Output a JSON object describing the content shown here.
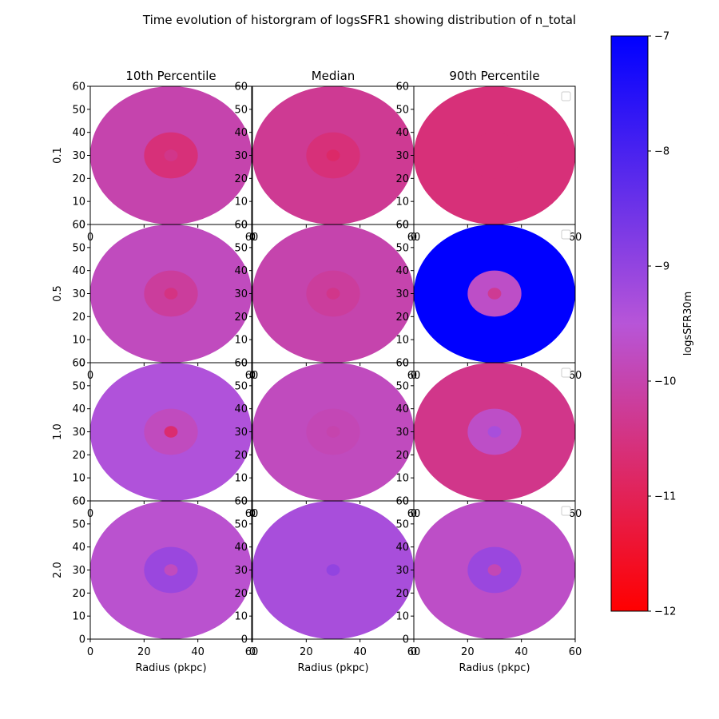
{
  "title": "Time evolution of historgram of logsSFR1 showing distribution of n_total",
  "chart_data": {
    "type": "heatmap",
    "projection": "polar",
    "column_titles": [
      "10th Percentile",
      "Median",
      "90th Percentile"
    ],
    "row_labels": [
      "0.1",
      "0.5",
      "1.0",
      "2.0"
    ],
    "xlabel": "Radius (pkpc)",
    "xlim": [
      0,
      60
    ],
    "ylim": [
      0,
      60
    ],
    "ticks": [
      "0",
      "10",
      "20",
      "30",
      "40",
      "50",
      "60"
    ],
    "xticks": [
      "0",
      "20",
      "40",
      "60"
    ],
    "rings_outer_radius": [
      2.5,
      10,
      30
    ],
    "grid": false,
    "legend_boxes": "top-right of 90th Percentile panels (empty)",
    "panels": [
      [
        {
          "rings": [
            -10.4,
            -10.6,
            -10.0
          ]
        },
        {
          "rings": [
            -10.8,
            -10.6,
            -10.3
          ]
        },
        {
          "rings": [
            -10.6,
            -10.6,
            -10.6
          ]
        }
      ],
      [
        {
          "rings": [
            -10.5,
            -10.2,
            -9.8
          ]
        },
        {
          "rings": [
            -10.4,
            -10.2,
            -10.0
          ]
        },
        {
          "rings": [
            -10.3,
            -9.7,
            -7.0
          ]
        }
      ],
      [
        {
          "rings": [
            -10.7,
            -9.8,
            -9.4
          ]
        },
        {
          "rings": [
            -10.0,
            -9.9,
            -9.8
          ]
        },
        {
          "rings": [
            -9.3,
            -9.7,
            -10.4
          ]
        }
      ],
      [
        {
          "rings": [
            -9.8,
            -9.1,
            -9.6
          ]
        },
        {
          "rings": [
            -9.0,
            -9.3,
            -9.3
          ]
        },
        {
          "rings": [
            -9.9,
            -9.1,
            -9.7
          ]
        }
      ]
    ],
    "colorbar": {
      "label": "logsSFR30m",
      "min": -12,
      "max": -7,
      "ticks": [
        "−12",
        "−11",
        "−10",
        "−9",
        "−8",
        "−7"
      ],
      "tick_values": [
        -12,
        -11,
        -10,
        -9,
        -8,
        -7
      ],
      "colors": [
        "#ff0000",
        "#b755d8",
        "#0000ff"
      ]
    }
  }
}
